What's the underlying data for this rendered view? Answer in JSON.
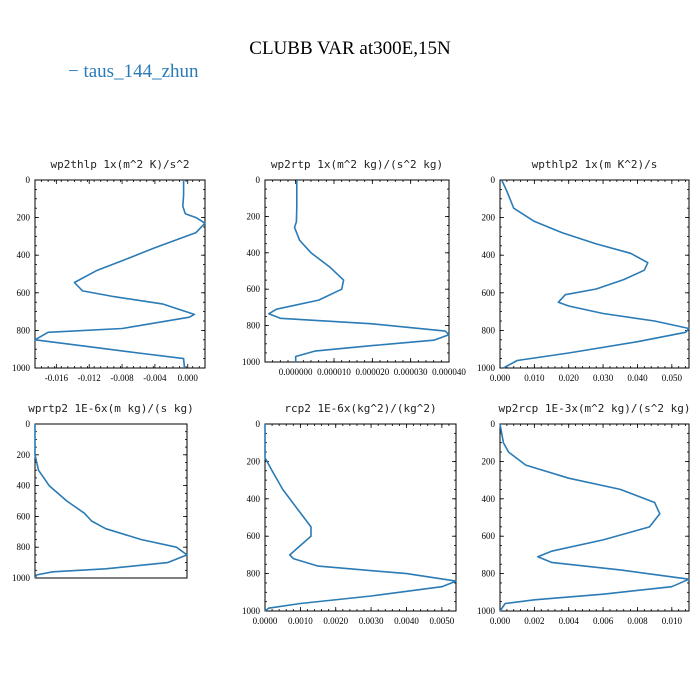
{
  "title": "CLUBB VAR at300E,15N",
  "legend": {
    "label": "− taus_144_zhun",
    "color": "#2a7bb6"
  },
  "chart_data": [
    {
      "type": "line",
      "title": "wp2thlp   1x(m^2 K)/s^2",
      "xlim": [
        -0.0186,
        0.0021
      ],
      "ylim": [
        1000,
        0
      ],
      "xticks": [
        -0.016,
        -0.012,
        -0.008,
        -0.004,
        0.0
      ],
      "xtick_labels": [
        "-0.016",
        "-0.012",
        "-0.008",
        "-0.004",
        "0.000"
      ],
      "yticks": [
        0,
        200,
        400,
        600,
        800,
        1000
      ],
      "ytick_labels": [
        "0",
        "200",
        "400",
        "600",
        "800",
        "1000"
      ],
      "series": [
        {
          "x": [
            -0.0005,
            -0.0005,
            -0.0006,
            -0.0003,
            0.001,
            0.0021,
            0.001,
            -0.004,
            -0.008,
            -0.011,
            -0.0138,
            -0.0128,
            -0.009,
            -0.003,
            0.0008,
            0.0002,
            -0.008,
            -0.017,
            -0.0186,
            -0.015,
            -0.006,
            -0.0005,
            -0.0004
          ],
          "y": [
            0,
            80,
            140,
            180,
            200,
            230,
            280,
            360,
            430,
            480,
            545,
            590,
            620,
            660,
            715,
            730,
            790,
            810,
            850,
            870,
            920,
            950,
            1000
          ]
        }
      ]
    },
    {
      "type": "line",
      "title": "wp2rtp   1x(m^2 kg)/(s^2 kg)",
      "xlim": [
        -8e-06,
        4e-05
      ],
      "ylim": [
        1000,
        0
      ],
      "xticks": [
        0.0,
        1e-05,
        2e-05,
        3e-05,
        4e-05
      ],
      "xtick_labels": [
        "0.000000",
        "0.000010",
        "0.000020",
        "0.000030",
        "0.000040"
      ],
      "yticks": [
        0,
        200,
        400,
        600,
        800,
        1000
      ],
      "ytick_labels": [
        "0",
        "200",
        "400",
        "600",
        "800",
        "1000"
      ],
      "series": [
        {
          "x": [
            3e-07,
            3e-07,
            2e-07,
            -3e-07,
            1e-06,
            4e-06,
            9e-06,
            1.25e-05,
            1.2e-05,
            6e-06,
            -5e-06,
            -7e-06,
            -4e-06,
            2e-05,
            3.9e-05,
            4e-05,
            3.6e-05,
            2e-05,
            5e-06,
            0.0,
            0.0
          ],
          "y": [
            0,
            150,
            230,
            260,
            330,
            400,
            480,
            550,
            600,
            660,
            710,
            735,
            760,
            790,
            830,
            850,
            880,
            910,
            940,
            970,
            1000
          ]
        }
      ]
    },
    {
      "type": "line",
      "title": "wpthlp2   1x(m K^2)/s",
      "xlim": [
        0.0,
        0.055
      ],
      "ylim": [
        1000,
        0
      ],
      "xticks": [
        0.0,
        0.01,
        0.02,
        0.03,
        0.04,
        0.05
      ],
      "xtick_labels": [
        "0.000",
        "0.010",
        "0.020",
        "0.030",
        "0.040",
        "0.050"
      ],
      "yticks": [
        0,
        200,
        400,
        600,
        800,
        1000
      ],
      "ytick_labels": [
        "0",
        "200",
        "400",
        "600",
        "800",
        "1000"
      ],
      "series": [
        {
          "x": [
            0.0005,
            0.002,
            0.004,
            0.01,
            0.018,
            0.028,
            0.038,
            0.043,
            0.042,
            0.036,
            0.028,
            0.019,
            0.017,
            0.02,
            0.03,
            0.045,
            0.055,
            0.054,
            0.04,
            0.02,
            0.005,
            0.001
          ],
          "y": [
            0,
            60,
            150,
            220,
            280,
            340,
            390,
            440,
            480,
            530,
            580,
            610,
            650,
            670,
            710,
            750,
            790,
            810,
            860,
            920,
            960,
            1000
          ]
        }
      ]
    },
    {
      "type": "line",
      "title": "wprtp2   1E-6x(m kg)/(s kg)",
      "xlim": [
        0.0,
        0.0086
      ],
      "ylim": [
        1000,
        0
      ],
      "xticks": [],
      "xtick_labels": [],
      "yticks": [
        0,
        200,
        400,
        600,
        800,
        1000
      ],
      "ytick_labels": [
        "0",
        "200",
        "400",
        "600",
        "800",
        "1000"
      ],
      "series": [
        {
          "x": [
            0.0,
            0.0,
            0.0002,
            0.0008,
            0.0018,
            0.0028,
            0.0032,
            0.004,
            0.006,
            0.008,
            0.0086,
            0.0075,
            0.004,
            0.001,
            0.0001,
            0.0
          ],
          "y": [
            0,
            200,
            300,
            400,
            500,
            580,
            630,
            680,
            750,
            800,
            850,
            900,
            940,
            960,
            980,
            1000
          ]
        }
      ]
    },
    {
      "type": "line",
      "title": "rcp2   1E-6x(kg^2)/(kg^2)",
      "xlim": [
        0.0,
        0.0054
      ],
      "ylim": [
        1000,
        0
      ],
      "xticks": [
        0.0,
        0.001,
        0.002,
        0.003,
        0.004,
        0.005
      ],
      "xtick_labels": [
        "0.0000",
        "0.0010",
        "0.0020",
        "0.0030",
        "0.0040",
        "0.0050"
      ],
      "yticks": [
        0,
        200,
        400,
        600,
        800,
        1000
      ],
      "ytick_labels": [
        "0",
        "200",
        "400",
        "600",
        "800",
        "1000"
      ],
      "series": [
        {
          "x": [
            0.0,
            0.0,
            0.0002,
            0.0005,
            0.0009,
            0.0013,
            0.0013,
            0.001,
            0.0007,
            0.0008,
            0.0015,
            0.004,
            0.0054,
            0.005,
            0.003,
            0.001,
            0.0001,
            0.0
          ],
          "y": [
            0,
            180,
            250,
            350,
            450,
            550,
            600,
            650,
            700,
            720,
            760,
            800,
            840,
            870,
            920,
            960,
            985,
            1000
          ]
        }
      ]
    },
    {
      "type": "line",
      "title": "wp2rcp   1E-3x(m^2 kg)/(s^2 kg)",
      "xlim": [
        0.0,
        0.011
      ],
      "ylim": [
        1000,
        0
      ],
      "xticks": [
        0.0,
        0.002,
        0.004,
        0.006,
        0.008,
        0.01
      ],
      "xtick_labels": [
        "0.000",
        "0.002",
        "0.004",
        "0.006",
        "0.008",
        "0.010"
      ],
      "yticks": [
        0,
        200,
        400,
        600,
        800,
        1000
      ],
      "ytick_labels": [
        "0",
        "200",
        "400",
        "600",
        "800",
        "1000"
      ],
      "series": [
        {
          "x": [
            0.0,
            0.0002,
            0.0005,
            0.0015,
            0.004,
            0.007,
            0.009,
            0.0093,
            0.0087,
            0.006,
            0.003,
            0.0022,
            0.003,
            0.007,
            0.011,
            0.01,
            0.006,
            0.002,
            0.0003,
            0.0
          ],
          "y": [
            0,
            100,
            150,
            220,
            290,
            350,
            420,
            480,
            550,
            620,
            680,
            710,
            740,
            780,
            830,
            870,
            910,
            940,
            960,
            1000
          ]
        }
      ]
    }
  ]
}
